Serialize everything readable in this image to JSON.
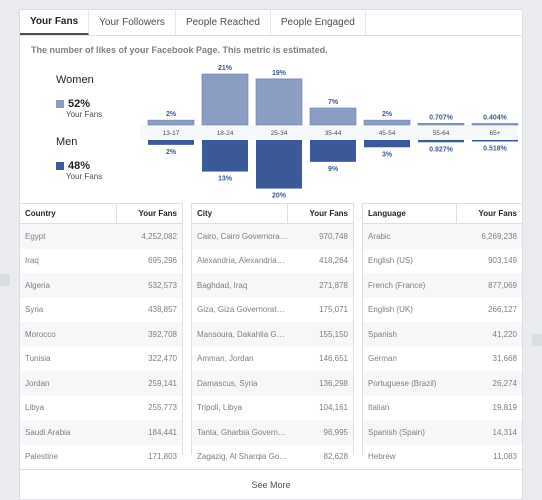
{
  "tabs": [
    "Your Fans",
    "Your Followers",
    "People Reached",
    "People Engaged"
  ],
  "description": "The number of likes of your Facebook Page. This metric is estimated.",
  "legend": {
    "women": {
      "title": "Women",
      "pct": "52%",
      "sub": "Your Fans",
      "color": "#8b9dc3"
    },
    "men": {
      "title": "Men",
      "pct": "48%",
      "sub": "Your Fans",
      "color": "#3b5998"
    }
  },
  "chart_data": {
    "type": "bar",
    "categories": [
      "13-17",
      "18-24",
      "25-34",
      "35-44",
      "45-54",
      "55-64",
      "65+"
    ],
    "series": [
      {
        "name": "Women",
        "values": [
          2,
          21,
          19,
          7,
          2,
          0.707,
          0.404
        ],
        "labels": [
          "2%",
          "21%",
          "19%",
          "7%",
          "2%",
          "0.707%",
          "0.404%"
        ]
      },
      {
        "name": "Men",
        "values": [
          2,
          13,
          20,
          9,
          3,
          0.927,
          0.518
        ],
        "labels": [
          "2%",
          "13%",
          "20%",
          "9%",
          "3%",
          "0.927%",
          "0.518%"
        ]
      }
    ],
    "ylim": [
      0,
      21
    ]
  },
  "tables": [
    {
      "header": [
        "Country",
        "Your Fans"
      ],
      "rows": [
        [
          "Egypt",
          "4,252,082"
        ],
        [
          "Iraq",
          "695,296"
        ],
        [
          "Algeria",
          "532,573"
        ],
        [
          "Syria",
          "438,857"
        ],
        [
          "Morocco",
          "392,708"
        ],
        [
          "Tunisia",
          "322,470"
        ],
        [
          "Jordan",
          "259,141"
        ],
        [
          "Libya",
          "255,773"
        ],
        [
          "Saudi Arabia",
          "184,441"
        ],
        [
          "Palestine",
          "171,803"
        ]
      ]
    },
    {
      "header": [
        "City",
        "Your Fans"
      ],
      "rows": [
        [
          "Cairo, Cairo Governora…",
          "970,748"
        ],
        [
          "Alexandria, Alexandria…",
          "418,264"
        ],
        [
          "Baghdad, Iraq",
          "271,878"
        ],
        [
          "Giza, Giza Governorat…",
          "175,071"
        ],
        [
          "Mansoura, Dakahlia G…",
          "155,150"
        ],
        [
          "Amman, Jordan",
          "146,651"
        ],
        [
          "Damascus, Syria",
          "136,298"
        ],
        [
          "Tripoli, Libya",
          "104,161"
        ],
        [
          "Tanta, Gharbia Govern…",
          "96,995"
        ],
        [
          "Zagazig, Al Sharqia Go…",
          "82,628"
        ]
      ]
    },
    {
      "header": [
        "Language",
        "Your Fans"
      ],
      "rows": [
        [
          "Arabic",
          "6,269,238"
        ],
        [
          "English (US)",
          "903,149"
        ],
        [
          "French (France)",
          "877,069"
        ],
        [
          "English (UK)",
          "266,127"
        ],
        [
          "Spanish",
          "41,220"
        ],
        [
          "German",
          "31,668"
        ],
        [
          "Portuguese (Brazil)",
          "26,274"
        ],
        [
          "Italian",
          "19,819"
        ],
        [
          "Spanish (Spain)",
          "14,314"
        ],
        [
          "Hebrew",
          "11,083"
        ]
      ]
    }
  ],
  "see_more": "See More"
}
